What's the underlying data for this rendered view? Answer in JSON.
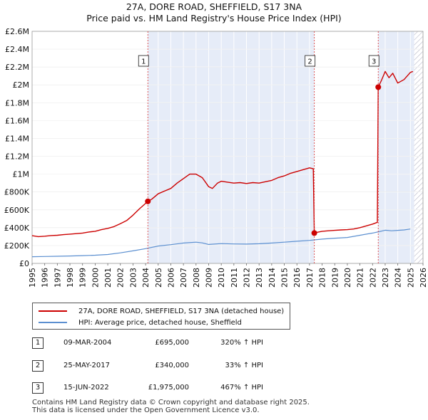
{
  "title": {
    "line1": "27A, DORE ROAD, SHEFFIELD, S17 3NA",
    "line2": "Price paid vs. HM Land Registry's House Price Index (HPI)"
  },
  "legend": {
    "property": "27A, DORE ROAD, SHEFFIELD, S17 3NA (detached house)",
    "hpi": "HPI: Average price, detached house, Sheffield"
  },
  "sales": [
    {
      "num": "1",
      "date": "09-MAR-2004",
      "price": "£695,000",
      "pct": "320% ↑ HPI"
    },
    {
      "num": "2",
      "date": "25-MAY-2017",
      "price": "£340,000",
      "pct": "33% ↑ HPI"
    },
    {
      "num": "3",
      "date": "15-JUN-2022",
      "price": "£1,975,000",
      "pct": "467% ↑ HPI"
    }
  ],
  "footer": {
    "line1": "Contains HM Land Registry data © Crown copyright and database right 2025.",
    "line2": "This data is licensed under the Open Government Licence v3.0."
  },
  "chart_data": {
    "type": "line",
    "title": "Price paid vs. HM Land Registry's House Price Index (HPI)",
    "xlim": [
      1995,
      2026
    ],
    "ylim": [
      0,
      2600000
    ],
    "x_ticks": [
      1995,
      1996,
      1997,
      1998,
      1999,
      2000,
      2001,
      2002,
      2003,
      2004,
      2005,
      2006,
      2007,
      2008,
      2009,
      2010,
      2011,
      2012,
      2013,
      2014,
      2015,
      2016,
      2017,
      2018,
      2019,
      2020,
      2021,
      2022,
      2023,
      2024,
      2025,
      2026
    ],
    "y_ticks": [
      {
        "v": 0,
        "label": "£0"
      },
      {
        "v": 200000,
        "label": "£200K"
      },
      {
        "v": 400000,
        "label": "£400K"
      },
      {
        "v": 600000,
        "label": "£600K"
      },
      {
        "v": 800000,
        "label": "£800K"
      },
      {
        "v": 1000000,
        "label": "£1M"
      },
      {
        "v": 1200000,
        "label": "£1.2M"
      },
      {
        "v": 1400000,
        "label": "£1.4M"
      },
      {
        "v": 1600000,
        "label": "£1.6M"
      },
      {
        "v": 1800000,
        "label": "£1.8M"
      },
      {
        "v": 2000000,
        "label": "£2M"
      },
      {
        "v": 2200000,
        "label": "£2.2M"
      },
      {
        "v": 2400000,
        "label": "£2.4M"
      },
      {
        "v": 2600000,
        "label": "£2.6M"
      }
    ],
    "series": [
      {
        "name": "27A, DORE ROAD, SHEFFIELD, S17 3NA (detached house)",
        "color": "#cc0000",
        "points": [
          [
            1995.0,
            310000
          ],
          [
            1995.5,
            300000
          ],
          [
            1996.0,
            305000
          ],
          [
            1996.5,
            312000
          ],
          [
            1997.0,
            315000
          ],
          [
            1997.5,
            322000
          ],
          [
            1998.0,
            328000
          ],
          [
            1998.5,
            333000
          ],
          [
            1999.0,
            340000
          ],
          [
            1999.5,
            352000
          ],
          [
            2000.0,
            360000
          ],
          [
            2000.5,
            378000
          ],
          [
            2001.0,
            392000
          ],
          [
            2001.5,
            412000
          ],
          [
            2002.0,
            445000
          ],
          [
            2002.5,
            480000
          ],
          [
            2003.0,
            540000
          ],
          [
            2003.5,
            610000
          ],
          [
            2004.18,
            695000
          ],
          [
            2004.5,
            720000
          ],
          [
            2005.0,
            780000
          ],
          [
            2005.5,
            810000
          ],
          [
            2006.0,
            840000
          ],
          [
            2006.5,
            900000
          ],
          [
            2007.0,
            950000
          ],
          [
            2007.5,
            1000000
          ],
          [
            2008.0,
            1000000
          ],
          [
            2008.5,
            960000
          ],
          [
            2009.0,
            860000
          ],
          [
            2009.3,
            840000
          ],
          [
            2009.7,
            900000
          ],
          [
            2010.0,
            920000
          ],
          [
            2010.5,
            910000
          ],
          [
            2011.0,
            900000
          ],
          [
            2011.5,
            905000
          ],
          [
            2012.0,
            895000
          ],
          [
            2012.5,
            905000
          ],
          [
            2013.0,
            900000
          ],
          [
            2013.5,
            915000
          ],
          [
            2014.0,
            930000
          ],
          [
            2014.5,
            960000
          ],
          [
            2015.0,
            980000
          ],
          [
            2015.5,
            1010000
          ],
          [
            2016.0,
            1030000
          ],
          [
            2016.5,
            1050000
          ],
          [
            2017.0,
            1070000
          ],
          [
            2017.3,
            1060000
          ],
          [
            2017.38,
            340000
          ],
          [
            2017.5,
            345000
          ],
          [
            2018.0,
            360000
          ],
          [
            2018.5,
            365000
          ],
          [
            2019.0,
            370000
          ],
          [
            2019.5,
            375000
          ],
          [
            2020.0,
            378000
          ],
          [
            2020.5,
            385000
          ],
          [
            2021.0,
            400000
          ],
          [
            2021.5,
            420000
          ],
          [
            2022.0,
            440000
          ],
          [
            2022.38,
            460000
          ],
          [
            2022.45,
            1975000
          ],
          [
            2022.7,
            2050000
          ],
          [
            2023.0,
            2150000
          ],
          [
            2023.3,
            2080000
          ],
          [
            2023.6,
            2130000
          ],
          [
            2024.0,
            2020000
          ],
          [
            2024.5,
            2060000
          ],
          [
            2025.0,
            2140000
          ],
          [
            2025.2,
            2150000
          ]
        ]
      },
      {
        "name": "HPI: Average price, detached house, Sheffield",
        "color": "#5b8fd0",
        "points": [
          [
            1995.0,
            75000
          ],
          [
            1996.0,
            77000
          ],
          [
            1997.0,
            80000
          ],
          [
            1998.0,
            83000
          ],
          [
            1999.0,
            87000
          ],
          [
            2000.0,
            92000
          ],
          [
            2001.0,
            100000
          ],
          [
            2002.0,
            118000
          ],
          [
            2003.0,
            140000
          ],
          [
            2004.0,
            165000
          ],
          [
            2004.5,
            180000
          ],
          [
            2005.0,
            195000
          ],
          [
            2006.0,
            210000
          ],
          [
            2007.0,
            228000
          ],
          [
            2008.0,
            238000
          ],
          [
            2008.5,
            230000
          ],
          [
            2009.0,
            212000
          ],
          [
            2010.0,
            222000
          ],
          [
            2011.0,
            218000
          ],
          [
            2012.0,
            216000
          ],
          [
            2013.0,
            220000
          ],
          [
            2014.0,
            228000
          ],
          [
            2015.0,
            238000
          ],
          [
            2016.0,
            248000
          ],
          [
            2017.0,
            258000
          ],
          [
            2018.0,
            272000
          ],
          [
            2019.0,
            282000
          ],
          [
            2020.0,
            290000
          ],
          [
            2021.0,
            315000
          ],
          [
            2022.0,
            340000
          ],
          [
            2022.5,
            355000
          ],
          [
            2023.0,
            372000
          ],
          [
            2023.5,
            365000
          ],
          [
            2024.0,
            370000
          ],
          [
            2024.5,
            375000
          ],
          [
            2025.0,
            385000
          ]
        ]
      }
    ],
    "sales": [
      {
        "label": "1",
        "x": 2004.18,
        "y": 695000
      },
      {
        "label": "2",
        "x": 2017.38,
        "y": 340000
      },
      {
        "label": "3",
        "x": 2022.45,
        "y": 1975000
      }
    ],
    "shaded_ranges": [
      [
        2004.18,
        2017.38
      ],
      [
        2022.45,
        2025.3
      ]
    ],
    "hatched_range": [
      2025.3,
      2026
    ]
  }
}
